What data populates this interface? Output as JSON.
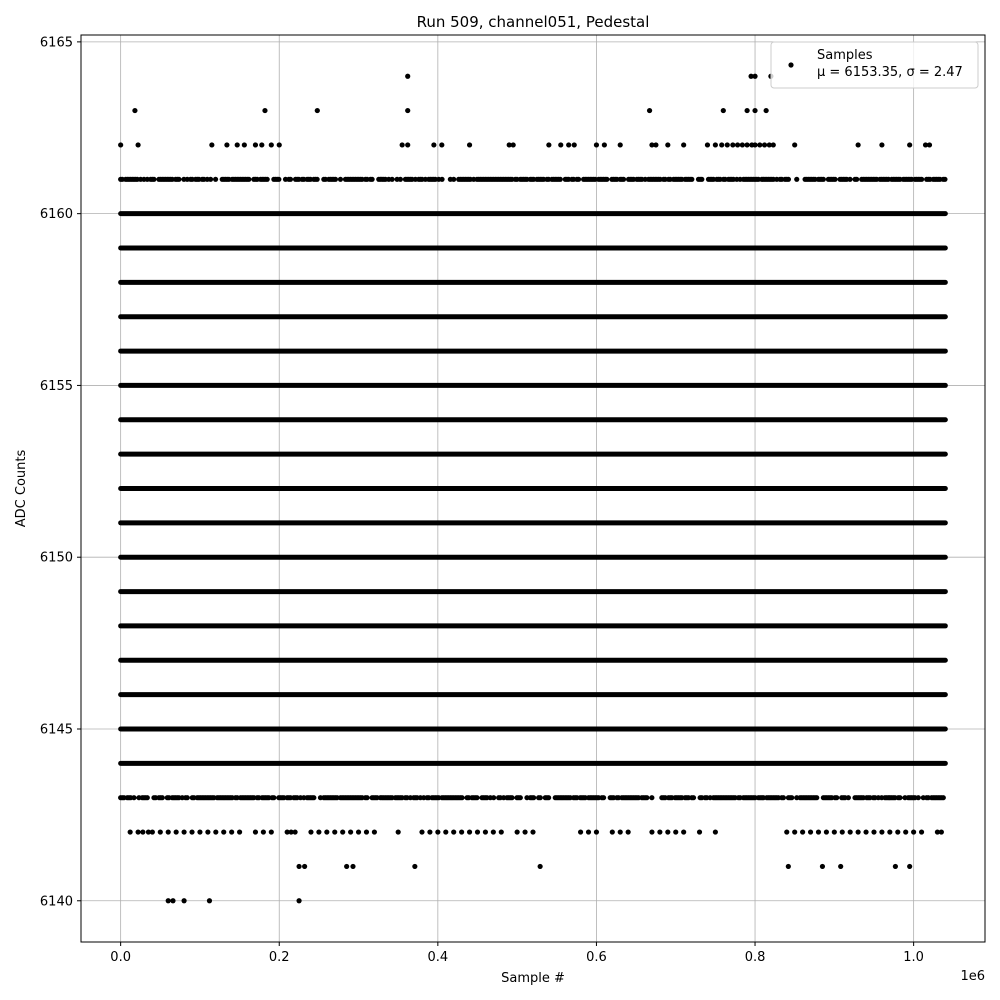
{
  "chart_data": {
    "type": "scatter",
    "title": "Run 509, channel051, Pedestal",
    "xlabel": "Sample #",
    "ylabel": "ADC Counts",
    "x_offset_label": "1e6",
    "xlim": [
      -0.05,
      1.09
    ],
    "ylim": [
      6138.8,
      6165.2
    ],
    "x_ticks": [
      0.0,
      0.2,
      0.4,
      0.6,
      0.8,
      1.0
    ],
    "x_tick_labels": [
      "0.0",
      "0.2",
      "0.4",
      "0.6",
      "0.8",
      "1.0"
    ],
    "y_ticks": [
      6140,
      6145,
      6150,
      6155,
      6160,
      6165
    ],
    "y_tick_labels": [
      "6140",
      "6145",
      "6150",
      "6155",
      "6160",
      "6165"
    ],
    "grid": true,
    "legend_position": "top-right",
    "colors": {
      "marker": "#000000",
      "grid": "#b0b0b0"
    },
    "series": [
      {
        "name": "Samples",
        "stats_label": "μ = 6153.35, σ = 2.47",
        "x_range": [
          0.0,
          1.04
        ],
        "full_levels": [
          6144,
          6145,
          6146,
          6147,
          6148,
          6149,
          6150,
          6151,
          6152,
          6153,
          6154,
          6155,
          6156,
          6157,
          6158,
          6159,
          6160
        ],
        "dense_levels": [
          6143,
          6161
        ],
        "sparse_points": {
          "6162": [
            0.0,
            0.022,
            0.115,
            0.134,
            0.147,
            0.156,
            0.17,
            0.178,
            0.19,
            0.2,
            0.355,
            0.362,
            0.395,
            0.405,
            0.44,
            0.49,
            0.495,
            0.54,
            0.555,
            0.565,
            0.572,
            0.6,
            0.61,
            0.63,
            0.67,
            0.675,
            0.69,
            0.71,
            0.74,
            0.75,
            0.758,
            0.765,
            0.772,
            0.778,
            0.784,
            0.79,
            0.796,
            0.8,
            0.806,
            0.812,
            0.818,
            0.823,
            0.85,
            0.93,
            0.96,
            0.995,
            1.015,
            1.02
          ],
          "6163": [
            0.018,
            0.182,
            0.248,
            0.362,
            0.667,
            0.76,
            0.79,
            0.8,
            0.814
          ],
          "6164": [
            0.362,
            0.795,
            0.8,
            0.82
          ],
          "6142": [
            0.012,
            0.022,
            0.028,
            0.035,
            0.04,
            0.05,
            0.06,
            0.07,
            0.08,
            0.09,
            0.1,
            0.11,
            0.12,
            0.13,
            0.14,
            0.15,
            0.17,
            0.18,
            0.19,
            0.21,
            0.215,
            0.22,
            0.24,
            0.25,
            0.26,
            0.27,
            0.28,
            0.29,
            0.3,
            0.31,
            0.32,
            0.35,
            0.38,
            0.39,
            0.4,
            0.41,
            0.42,
            0.43,
            0.44,
            0.45,
            0.46,
            0.47,
            0.48,
            0.5,
            0.51,
            0.52,
            0.58,
            0.59,
            0.6,
            0.62,
            0.63,
            0.64,
            0.67,
            0.68,
            0.69,
            0.7,
            0.71,
            0.73,
            0.75,
            0.84,
            0.85,
            0.86,
            0.87,
            0.88,
            0.89,
            0.9,
            0.91,
            0.92,
            0.93,
            0.94,
            0.95,
            0.96,
            0.97,
            0.98,
            0.99,
            1.0,
            1.01,
            1.03,
            1.035
          ],
          "6141": [
            0.225,
            0.232,
            0.285,
            0.293,
            0.371,
            0.529,
            0.842,
            0.885,
            0.908,
            0.977,
            0.995
          ],
          "6140": [
            0.06,
            0.066,
            0.08,
            0.112,
            0.225
          ]
        }
      }
    ]
  }
}
